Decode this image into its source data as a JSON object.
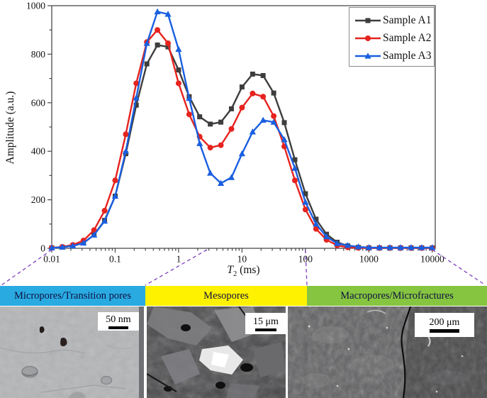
{
  "chart_data": {
    "type": "line",
    "title": "",
    "ylabel": "Amplitude (a.u.)",
    "xlabel_italic": "T",
    "xlabel_sub": "2",
    "xlabel_unit": " (ms)",
    "x_scale": "log",
    "xlim": [
      0.01,
      10000
    ],
    "ylim": [
      0,
      1000
    ],
    "x_tick_labels": [
      "0.01",
      "0.1",
      "1",
      "10",
      "100",
      "1000",
      "10000"
    ],
    "y_ticks": [
      0,
      200,
      400,
      600,
      800,
      1000
    ],
    "grid": false,
    "legend_position": "top-right",
    "frame_color": "#4a4a4a",
    "x": [
      0.01,
      0.0147,
      0.0215,
      0.0316,
      0.0464,
      0.0681,
      0.1,
      0.147,
      0.215,
      0.316,
      0.464,
      0.681,
      1,
      1.47,
      2.15,
      3.16,
      4.64,
      6.81,
      10,
      14.7,
      21.5,
      31.6,
      46.4,
      68.1,
      100,
      147,
      215,
      316,
      464,
      681,
      1000,
      1470,
      2150,
      3160,
      4640,
      6810,
      10000
    ],
    "series": [
      {
        "name": "Sample A1",
        "color": "#3d3d3d",
        "marker": "square",
        "values": [
          2,
          5,
          10,
          22,
          55,
          115,
          215,
          390,
          590,
          760,
          838,
          830,
          735,
          625,
          542,
          512,
          520,
          575,
          665,
          718,
          712,
          640,
          518,
          365,
          225,
          120,
          58,
          25,
          10,
          4,
          2,
          2,
          2,
          2,
          2,
          2,
          2
        ]
      },
      {
        "name": "Sample A2",
        "color": "#e6231e",
        "marker": "circle",
        "values": [
          2,
          6,
          14,
          32,
          75,
          155,
          280,
          470,
          680,
          850,
          900,
          845,
          680,
          552,
          460,
          415,
          425,
          492,
          580,
          638,
          625,
          545,
          420,
          280,
          160,
          80,
          35,
          12,
          4,
          2,
          1,
          1,
          1,
          1,
          1,
          1,
          1
        ]
      },
      {
        "name": "Sample A3",
        "color": "#1a5fe0",
        "marker": "triangle",
        "values": [
          2,
          5,
          10,
          22,
          55,
          112,
          215,
          400,
          620,
          845,
          975,
          965,
          820,
          618,
          432,
          310,
          268,
          292,
          390,
          480,
          528,
          520,
          448,
          330,
          190,
          100,
          48,
          20,
          12,
          6,
          3,
          3,
          3,
          3,
          3,
          3,
          3
        ]
      }
    ],
    "connectors": {
      "color": "#7d3fc0",
      "from_t2": [
        0.01,
        2.8,
        100,
        10000
      ]
    }
  },
  "pore_bands": [
    {
      "label": "Micropores/Transition pores",
      "color": "#29ABE2"
    },
    {
      "label": "Mesopores",
      "color": "#FFF200"
    },
    {
      "label": "Macropores/Microfractures",
      "color": "#85C540"
    }
  ],
  "sem_panels": [
    {
      "scale_label": "50 nm"
    },
    {
      "scale_label": "15 μm"
    },
    {
      "scale_label": "200 μm"
    }
  ]
}
